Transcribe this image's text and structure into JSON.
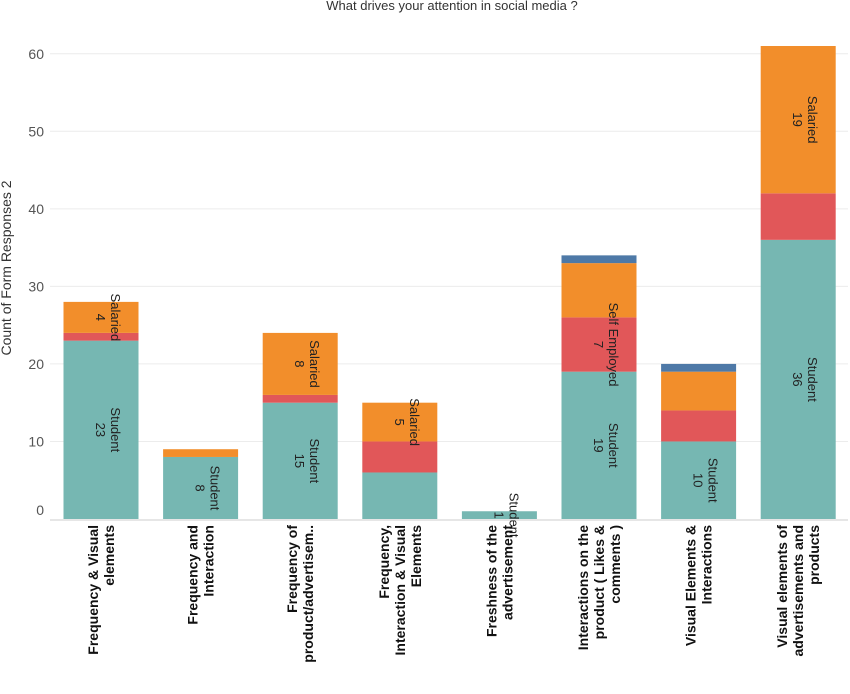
{
  "chart_data": {
    "type": "bar",
    "stacked": true,
    "title": "What drives your attention in social media ?",
    "xlabel": "",
    "ylabel": "Count of Form Responses 2",
    "ylim": [
      0,
      61
    ],
    "yticks": [
      0,
      10,
      20,
      30,
      40,
      50,
      60
    ],
    "grid": true,
    "categories": [
      [
        "Frequency & Visual",
        "elements"
      ],
      [
        "Frequency and",
        "Interaction"
      ],
      [
        "Frequency of",
        "product/advertisem.."
      ],
      [
        "Frequency,",
        "Interaction & Visual",
        "Elements"
      ],
      [
        "Freshness of the",
        "advertisement"
      ],
      [
        "Interactions on the",
        "product ( Likes &",
        "comments )"
      ],
      [
        "Visual Elements &",
        "Interactions"
      ],
      [
        "Visual elements of",
        "advertisements and",
        "products"
      ]
    ],
    "series": [
      {
        "name": "Student",
        "color": "#76b7b2",
        "values": [
          23,
          8,
          15,
          6,
          1,
          19,
          10,
          36
        ]
      },
      {
        "name": "Self Employed",
        "color": "#e15759",
        "values": [
          1,
          0,
          1,
          4,
          0,
          7,
          4,
          6
        ]
      },
      {
        "name": "Salaried",
        "color": "#f28e2b",
        "values": [
          4,
          1,
          8,
          5,
          0,
          7,
          5,
          19
        ]
      },
      {
        "name": "",
        "color": "#4e79a7",
        "values": [
          0,
          0,
          0,
          0,
          0,
          1,
          1,
          0
        ]
      }
    ],
    "segment_labels": [
      [
        {
          "value": "23",
          "name": "Student"
        },
        null,
        {
          "value": "4",
          "name": "Salaried"
        },
        null
      ],
      [
        {
          "value": "8",
          "name": "Student"
        },
        null,
        null,
        null
      ],
      [
        {
          "value": "15",
          "name": "Student"
        },
        null,
        {
          "value": "8",
          "name": "Salaried"
        },
        null
      ],
      [
        null,
        null,
        {
          "value": "5",
          "name": "Salaried"
        },
        null
      ],
      [
        {
          "value": "1",
          "name": "Student"
        },
        null,
        null,
        null
      ],
      [
        {
          "value": "19",
          "name": "Student"
        },
        {
          "value": "7",
          "name": "Self Employed"
        },
        null,
        null
      ],
      [
        {
          "value": "10",
          "name": "Student"
        },
        null,
        null,
        null
      ],
      [
        {
          "value": "36",
          "name": "Student"
        },
        null,
        {
          "value": "19",
          "name": "Salaried"
        },
        null
      ]
    ]
  }
}
